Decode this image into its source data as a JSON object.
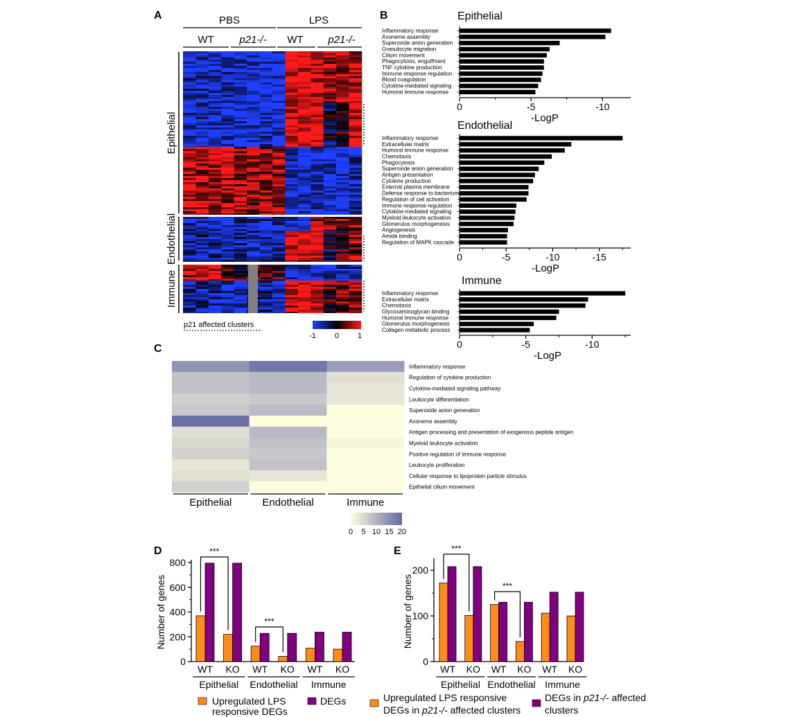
{
  "panel_letters": {
    "a": "A",
    "b": "B",
    "c": "C",
    "d": "D",
    "e": "E"
  },
  "heatmap_a": {
    "groups": [
      "PBS",
      "LPS"
    ],
    "genotypes": [
      "WT",
      "p21-/-",
      "WT",
      "p21-/-"
    ],
    "row_clusters": [
      "Epithelial",
      "Endothelial",
      "Immune"
    ],
    "legend_caption": "p21 affected clusters",
    "colorbar_ticks": [
      "-1",
      "0",
      "1"
    ],
    "colors": {
      "low": "#1f3fff",
      "mid": "#000000",
      "high": "#ff1a1a",
      "missing": "#808080"
    }
  },
  "chart_data": [
    {
      "panel": "B",
      "type": "bar",
      "orientation": "horizontal",
      "title": "Epithelial",
      "xlabel": "-LogP",
      "xticks": [
        "0",
        "-5",
        "-10"
      ],
      "xlim": [
        0,
        -11
      ],
      "categories": [
        "Inflammatory response",
        "Axoneme assembly",
        "Superoxide anion generation",
        "Granulocyte migration",
        "Cilium movement",
        "Phagocytosis, engulfment",
        "TNF cytokine production",
        "Immune response regulation",
        "Blood coagulation",
        "Cytokine-mediated signaling",
        "Humoral immune response"
      ],
      "values": [
        -10.6,
        -10.2,
        -7.0,
        -6.3,
        -6.1,
        -5.9,
        -5.9,
        -5.8,
        -5.7,
        -5.5,
        -5.3
      ],
      "color": "#000000"
    },
    {
      "panel": "B",
      "type": "bar",
      "orientation": "horizontal",
      "title": "Endothelial",
      "xlabel": "-LogP",
      "xticks": [
        "0",
        "-5",
        "-10",
        "-15"
      ],
      "xlim": [
        0,
        -18
      ],
      "categories": [
        "Inflammatory response",
        "Extracellular matrix",
        "Humoral immune response",
        "Chemotaxis",
        "Phagocytosis",
        "Superoxide anion generation",
        "Antigen presentation",
        "Cytokine production",
        "External plasma membrane",
        "Defense response to bacterium",
        "Regulation of cell activation",
        "Immune response regulation",
        "Cytokine-mediated signaling",
        "Myeloid leukocyte activation",
        "Glomerulus morphogenesis",
        "Angiogenesis",
        "Amide binding",
        "Regulation of MAPK cascade"
      ],
      "values": [
        -17.5,
        -12.0,
        -11.3,
        -9.9,
        -9.1,
        -8.5,
        -8.1,
        -7.9,
        -7.4,
        -7.4,
        -7.2,
        -6.1,
        -6.0,
        -5.9,
        -5.8,
        -5.2,
        -5.1,
        -5.1
      ],
      "color": "#000000"
    },
    {
      "panel": "B",
      "type": "bar",
      "orientation": "horizontal",
      "title": "Immune",
      "xlabel": "-LogP",
      "xticks": [
        "0",
        "-5",
        "-10"
      ],
      "xlim": [
        0,
        -12.6
      ],
      "categories": [
        "Inflammatory response",
        "Extracellular matrix",
        "Chemotaxis",
        "Glycosaminoglycan binding",
        "Humoral immune response",
        "Glomerulus morphogenesis",
        "Collagen metabolic process"
      ],
      "values": [
        -12.5,
        -9.7,
        -9.5,
        -7.5,
        -7.3,
        -5.6,
        -5.3
      ],
      "color": "#000000"
    },
    {
      "panel": "C",
      "type": "heatmap",
      "columns": [
        "Epithelial",
        "Endothelial",
        "Immune"
      ],
      "rows": [
        "Inflammatory response",
        "Regulation of cytokine production",
        "Cytokine-mediated signaling pathway",
        "Leukocyte differentiation",
        "Superoxide anion generation",
        "Axoneme assembly",
        "Antigen processing and presentation of exogenous peptide antigen",
        "Myeloid leukocyte activation",
        "Positive regulation of immune response",
        "Leukocyte proliferation",
        "Cellular response to lipoprotein particle stimulus",
        "Epithelial cilium movement"
      ],
      "values": [
        [
          14,
          18,
          13
        ],
        [
          8,
          9,
          4
        ],
        [
          8,
          9,
          3
        ],
        [
          6,
          7,
          3
        ],
        [
          7,
          9,
          0
        ],
        [
          19,
          0,
          0
        ],
        [
          4,
          9,
          0
        ],
        [
          5,
          8,
          1
        ],
        [
          6,
          7,
          0
        ],
        [
          3,
          8,
          0
        ],
        [
          4,
          3,
          0
        ],
        [
          6,
          0,
          0
        ]
      ],
      "colorbar_ticks": [
        "0",
        "5",
        "10",
        "15",
        "20"
      ],
      "range": [
        0,
        20
      ],
      "colors": {
        "low": "#fffde0",
        "high": "#6468a3"
      }
    },
    {
      "panel": "D",
      "type": "bar",
      "ylabel": "Number of genes",
      "ylim": [
        0,
        800
      ],
      "yticks": [
        "0",
        "200",
        "400",
        "600",
        "800"
      ],
      "groups": [
        "Epithelial",
        "Endothelial",
        "Immune"
      ],
      "categories": [
        "WT",
        "KO",
        "WT",
        "KO",
        "WT",
        "KO"
      ],
      "series": [
        {
          "name": "Upregulated LPS responsive DEGs",
          "values": [
            370,
            220,
            125,
            42,
            108,
            100
          ],
          "color": "#ff8c1a"
        },
        {
          "name": "DEGs",
          "values": [
            795,
            795,
            228,
            228,
            238,
            238
          ],
          "color": "#800080"
        }
      ],
      "significance": [
        {
          "between": [
            0,
            1
          ],
          "label": "***"
        },
        {
          "between": [
            2,
            3
          ],
          "label": "***"
        }
      ]
    },
    {
      "panel": "E",
      "type": "bar",
      "ylabel": "Number of genes",
      "ylim": [
        0,
        220
      ],
      "yticks": [
        "0",
        "100",
        "200"
      ],
      "groups": [
        "Epithelial",
        "Endothelial",
        "Immune"
      ],
      "categories": [
        "WT",
        "KO",
        "WT",
        "KO",
        "WT",
        "KO"
      ],
      "series": [
        {
          "name": "Upregulated LPS responsive DEGs in p21-/- affected clusters",
          "values": [
            172,
            101,
            125,
            44,
            106,
            100
          ],
          "color": "#ff8c1a"
        },
        {
          "name": "DEGs in p21-/- affected clusters",
          "values": [
            208,
            208,
            130,
            130,
            152,
            152
          ],
          "color": "#800080"
        }
      ],
      "significance": [
        {
          "between": [
            0,
            1
          ],
          "label": "***"
        },
        {
          "between": [
            2,
            3
          ],
          "label": "***"
        }
      ]
    }
  ],
  "legend_d": {
    "item1": {
      "line1": "Upregulated LPS",
      "line2": "responsive DEGs"
    },
    "item2": "DEGs"
  },
  "legend_e": {
    "item1": {
      "line1": "Upregulated LPS responsive",
      "line2_pre": "DEGs in ",
      "line2_italic": "p21-/-",
      "line2_post": " affected clusters"
    },
    "item2": {
      "line1_pre": "DEGs in ",
      "line1_italic": "p21-/-",
      "line1_post": " affected",
      "line2": "clusters"
    }
  }
}
